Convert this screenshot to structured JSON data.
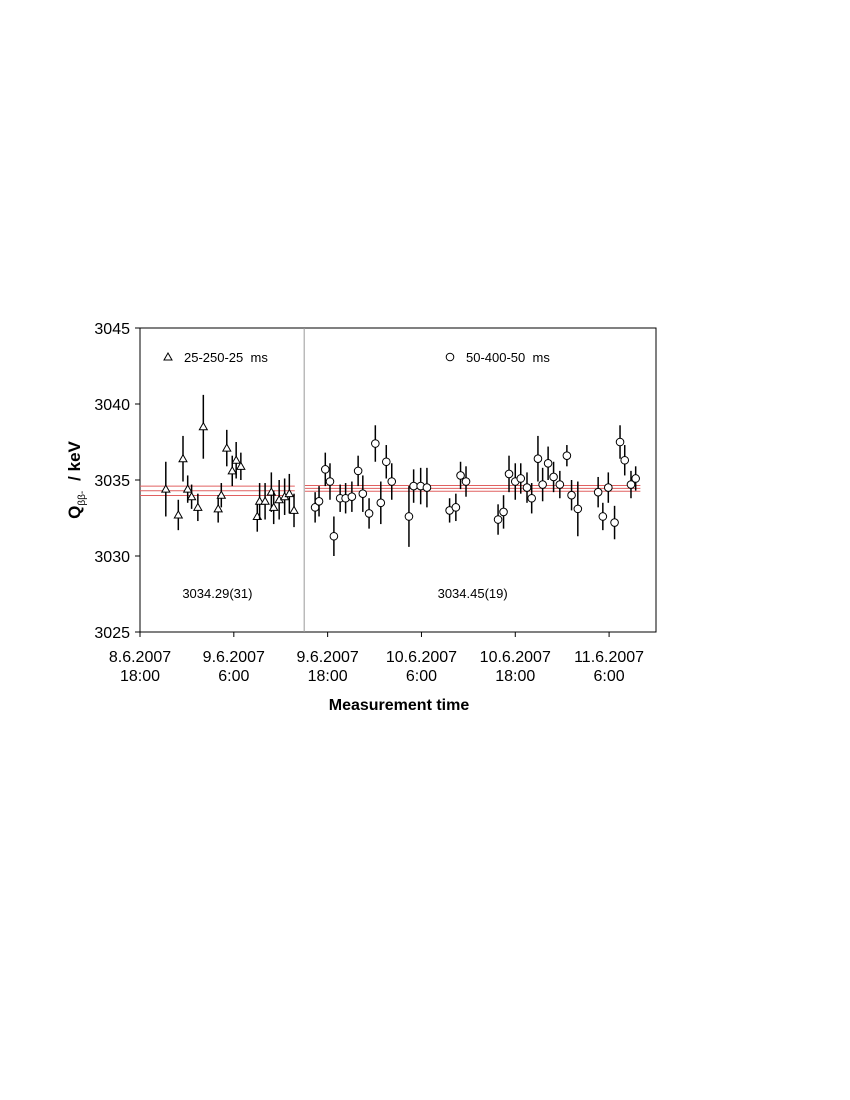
{
  "chart_data": {
    "type": "scatter",
    "x_label": "Measurement time",
    "y_label": "Q",
    "y_label_sub": "ββ-",
    "y_label_unit": "/ keV",
    "xlim": [
      0,
      66
    ],
    "xticks": [
      {
        "value": 0,
        "label": "8.6.2007\n18:00"
      },
      {
        "value": 12,
        "label": "9.6.2007\n6:00"
      },
      {
        "value": 24,
        "label": "9.6.2007\n18:00"
      },
      {
        "value": 36,
        "label": "10.6.2007\n6:00"
      },
      {
        "value": 48,
        "label": "10.6.2007\n18:00"
      },
      {
        "value": 60,
        "label": "11.6.2007\n6:00"
      }
    ],
    "ylim": [
      3025,
      3045
    ],
    "yticks": [
      3025,
      3030,
      3035,
      3040,
      3045
    ],
    "divider_x": 21,
    "series": [
      {
        "name": "25-250-25  ms",
        "marker": "triangle",
        "color": "#000000",
        "mean_color": "#e06060",
        "mean": 3034.29,
        "mean_error": 0.31,
        "mean_label": "3034.29(31)",
        "mean_xrange": [
          0,
          19.8
        ],
        "x": [
          3.3,
          4.9,
          5.5,
          6.1,
          6.6,
          7.4,
          8.1,
          10.0,
          10.4,
          11.1,
          11.8,
          12.3,
          12.9,
          15.0,
          15.3,
          16.0,
          16.8,
          17.1,
          17.8,
          18.5,
          19.1,
          19.7
        ],
        "values": [
          3034.4,
          3032.7,
          3036.4,
          3034.4,
          3033.9,
          3033.2,
          3038.5,
          3033.1,
          3034.0,
          3037.1,
          3035.6,
          3036.3,
          3035.9,
          3032.6,
          3033.6,
          3033.6,
          3034.2,
          3033.2,
          3033.7,
          3033.9,
          3034.1,
          3033.0
        ],
        "errors": [
          1.8,
          1.0,
          1.5,
          0.9,
          0.8,
          0.9,
          2.1,
          0.9,
          0.8,
          1.2,
          1.0,
          1.2,
          0.9,
          1.0,
          1.2,
          1.2,
          1.3,
          1.1,
          1.3,
          1.2,
          1.3,
          1.1
        ]
      },
      {
        "name": "50-400-50  ms",
        "marker": "circle",
        "color": "#000000",
        "mean_color": "#e06060",
        "mean": 3034.45,
        "mean_error": 0.19,
        "mean_label": "3034.45(19)",
        "mean_xrange": [
          21.1,
          64
        ],
        "x": [
          22.4,
          22.9,
          23.7,
          24.3,
          24.8,
          25.6,
          26.3,
          27.1,
          27.9,
          28.5,
          29.3,
          30.1,
          30.8,
          31.5,
          32.2,
          34.4,
          35.0,
          35.9,
          36.7,
          39.6,
          40.4,
          41.0,
          41.7,
          45.8,
          46.5,
          47.2,
          48.0,
          48.7,
          49.5,
          50.1,
          50.9,
          51.5,
          52.2,
          52.9,
          53.7,
          54.6,
          55.2,
          56.0,
          58.6,
          59.2,
          59.9,
          60.7,
          61.4,
          62.0,
          62.8,
          63.4
        ],
        "values": [
          3033.2,
          3033.6,
          3035.7,
          3034.9,
          3031.3,
          3033.8,
          3033.8,
          3033.9,
          3035.6,
          3034.1,
          3032.8,
          3037.4,
          3033.5,
          3036.2,
          3034.9,
          3032.6,
          3034.6,
          3034.6,
          3034.5,
          3033.0,
          3033.2,
          3035.3,
          3034.9,
          3032.4,
          3032.9,
          3035.4,
          3034.9,
          3035.1,
          3034.5,
          3033.8,
          3036.4,
          3034.7,
          3036.1,
          3035.2,
          3034.7,
          3036.6,
          3034.0,
          3033.1,
          3034.2,
          3032.6,
          3034.5,
          3032.2,
          3037.5,
          3036.3,
          3034.7,
          3035.1
        ],
        "errors": [
          1.0,
          1.0,
          1.1,
          1.2,
          1.3,
          0.9,
          1.0,
          1.0,
          1.0,
          1.2,
          1.0,
          1.2,
          1.4,
          1.1,
          1.2,
          2.0,
          1.1,
          1.2,
          1.3,
          0.8,
          0.9,
          0.9,
          1.0,
          1.0,
          1.1,
          1.2,
          1.2,
          1.0,
          1.0,
          1.0,
          1.5,
          1.1,
          1.1,
          1.0,
          0.9,
          0.7,
          1.0,
          1.8,
          1.0,
          0.9,
          1.0,
          1.1,
          1.1,
          1.0,
          0.9,
          0.8
        ]
      }
    ]
  }
}
